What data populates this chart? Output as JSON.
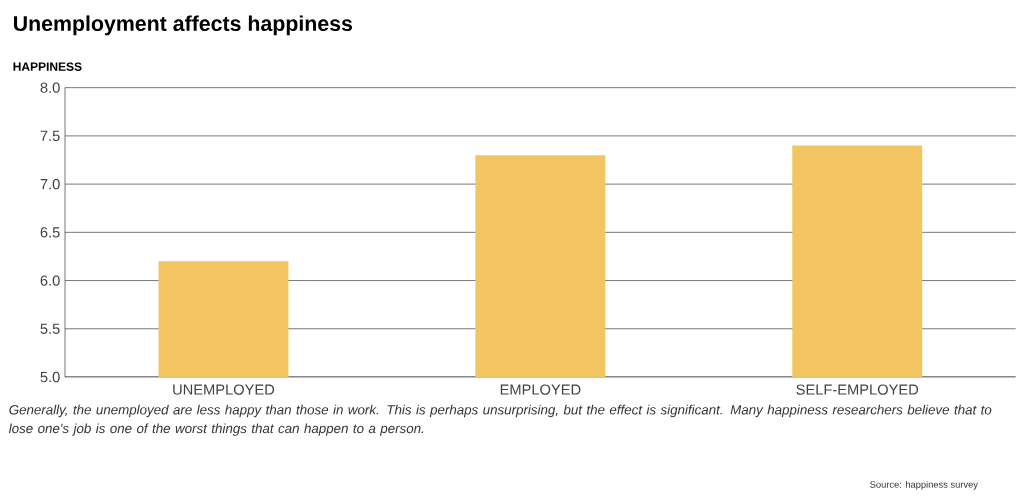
{
  "chart_data": {
    "type": "bar",
    "title": "Unemployment affects happiness",
    "ylabel": "HAPPINESS",
    "categories": [
      "UNEMPLOYED",
      "EMPLOYED",
      "SELF-EMPLOYED"
    ],
    "values": [
      6.2,
      7.3,
      7.4
    ],
    "color": "#f2c462",
    "ylim": [
      5.0,
      8.0
    ],
    "yticks": [
      {
        "value": 5.0,
        "label": "5.0"
      },
      {
        "value": 5.5,
        "label": "5.5"
      },
      {
        "value": 6.0,
        "label": "6.0"
      },
      {
        "value": 6.5,
        "label": "6.5"
      },
      {
        "value": 7.0,
        "label": "7.0"
      },
      {
        "value": 7.5,
        "label": "7.5"
      },
      {
        "value": 8.0,
        "label": "8.0"
      }
    ],
    "grid": "y",
    "annotations": [
      "Generally, the unemployed are less happy than those in work. This is perhaps unsurprising, but the effect is significant. Many happiness researchers believe that to lose one's job is one of the worst things that can happen to a person.",
      "Source: happiness survey"
    ]
  }
}
